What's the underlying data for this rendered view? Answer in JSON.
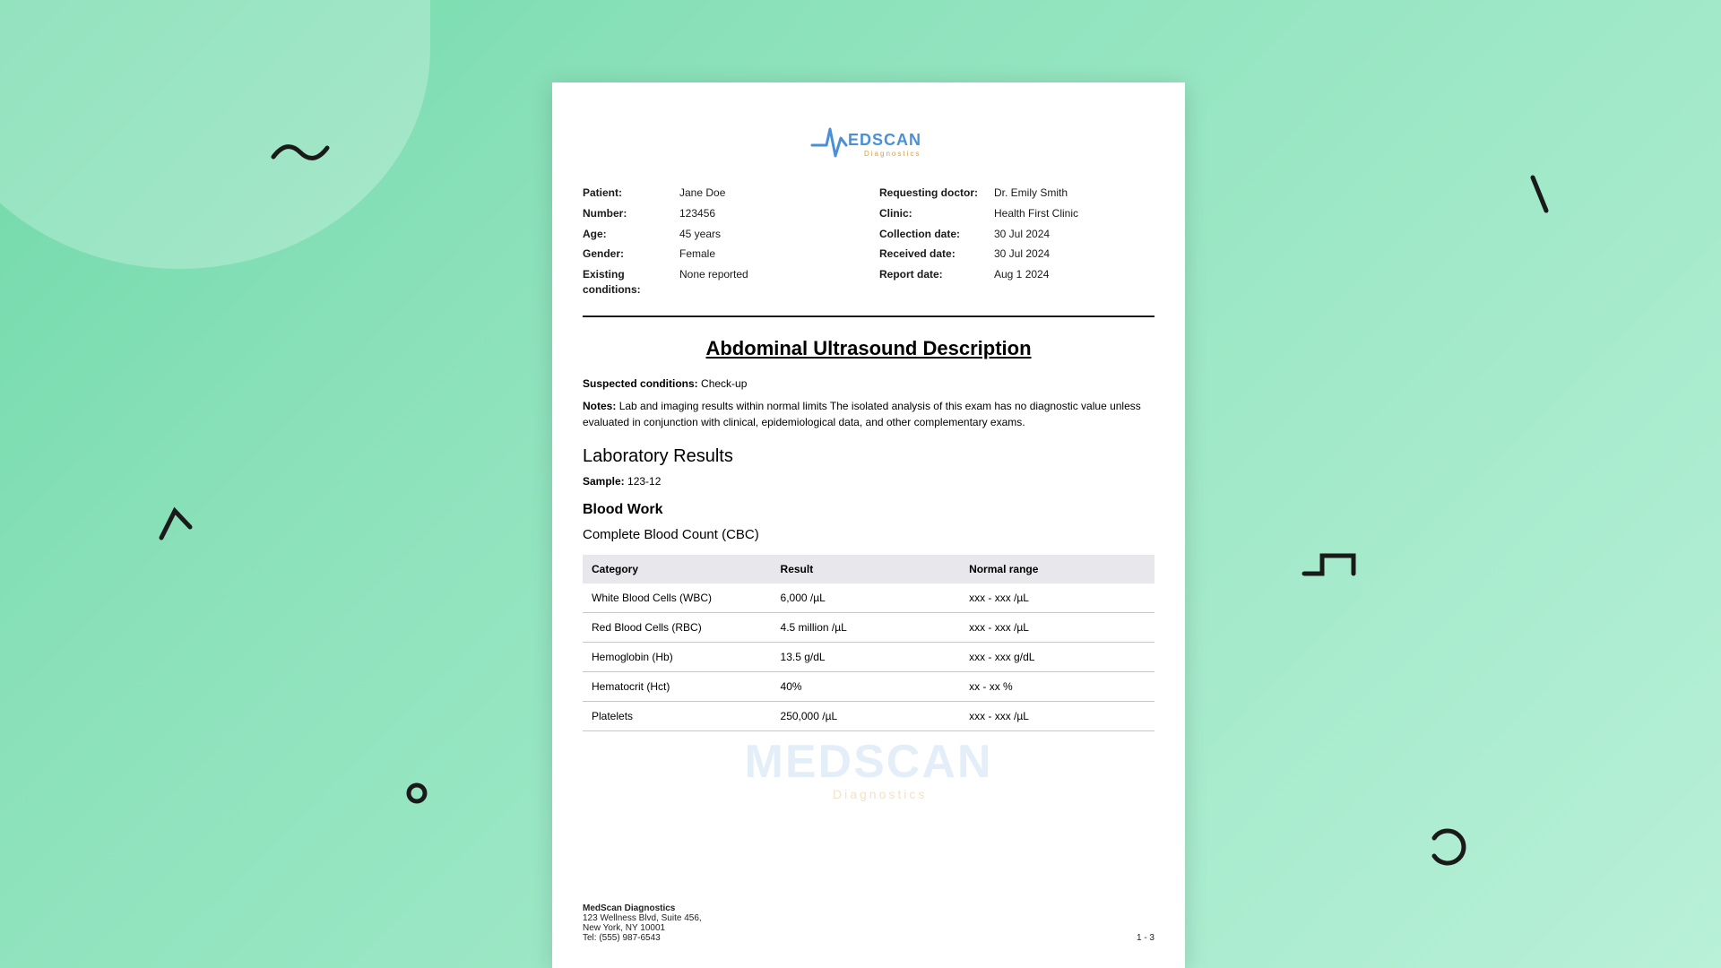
{
  "background": {
    "gradient_colors": [
      "#6fd9a9",
      "#88e0b8",
      "#98e6c3",
      "#a8ebcd",
      "#b8f0d8"
    ],
    "blob_color": "rgba(255,255,255,0.25)",
    "squiggle_stroke": "#1a1a1a",
    "squiggle_stroke_width": 5
  },
  "logo": {
    "brand": "MEDSCAN",
    "tagline": "Diagnostics",
    "brand_color": "#4a90d9",
    "tagline_color": "#d4a04a"
  },
  "meta_left": [
    {
      "label": "Patient:",
      "value": "Jane Doe"
    },
    {
      "label": "Number:",
      "value": "123456"
    },
    {
      "label": "Age:",
      "value": "45 years"
    },
    {
      "label": "Gender:",
      "value": "Female"
    },
    {
      "label": "Existing conditions:",
      "value": "None reported"
    }
  ],
  "meta_right": [
    {
      "label": "Requesting doctor:",
      "value": "Dr. Emily Smith"
    },
    {
      "label": "Clinic:",
      "value": "Health First Clinic"
    },
    {
      "label": "Collection date:",
      "value": "30 Jul 2024"
    },
    {
      "label": "Received date:",
      "value": "30 Jul 2024"
    },
    {
      "label": "Report date:",
      "value": "Aug 1 2024"
    }
  ],
  "report": {
    "title": "Abdominal Ultrasound Description",
    "suspected_label": "Suspected conditions:",
    "suspected_value": "Check-up",
    "notes_label": "Notes:",
    "notes_value": "Lab and imaging results within normal limits The isolated analysis of this exam has no diagnostic value unless evaluated in conjunction with clinical, epidemiological data, and other complementary exams.",
    "lab_heading": "Laboratory Results",
    "sample_label": "Sample:",
    "sample_value": "123-12",
    "bloodwork_heading": "Blood Work",
    "cbc_heading": "Complete Blood Count (CBC)"
  },
  "cbc_table": {
    "type": "table",
    "header_bg": "#e8e8ec",
    "row_border": "#c8c8c8",
    "font_size": 12,
    "columns": [
      "Category",
      "Result",
      "Normal range"
    ],
    "rows": [
      [
        "White Blood Cells (WBC)",
        "6,000 /µL",
        "xxx - xxx /µL"
      ],
      [
        "Red Blood Cells (RBC)",
        "4.5 million /µL",
        "xxx - xxx /µL"
      ],
      [
        "Hemoglobin (Hb)",
        "13.5 g/dL",
        "xxx - xxx g/dL"
      ],
      [
        "Hematocrit (Hct)",
        "40%",
        "xx - xx %"
      ],
      [
        "Platelets",
        "250,000 /µL",
        "xxx - xxx /µL"
      ]
    ]
  },
  "footer": {
    "company": "MedScan Diagnostics",
    "addr1": "123 Wellness Blvd, Suite 456,",
    "addr2": "New York, NY 10001",
    "tel": "Tel: (555) 987-6543",
    "pager": "1 - 3"
  },
  "watermark": {
    "text": "MEDSCAN",
    "sub": "Diagnostics"
  }
}
